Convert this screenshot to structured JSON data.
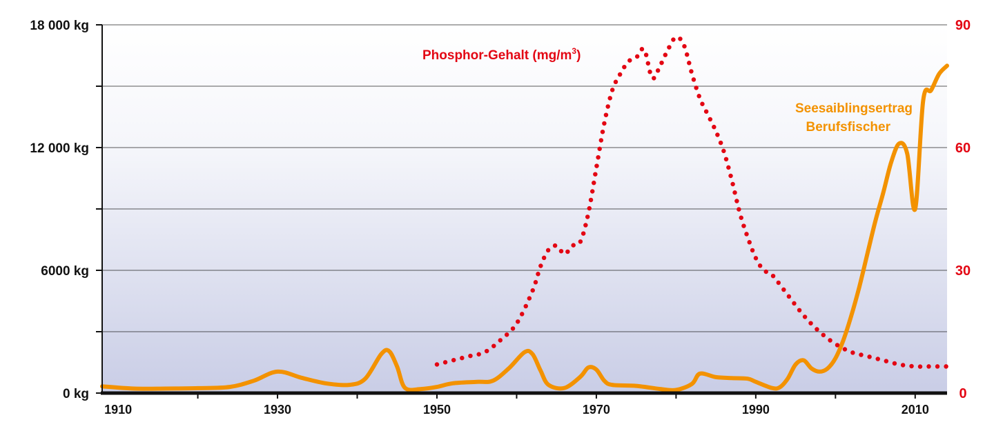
{
  "chart_data": {
    "type": "line",
    "title": "",
    "xlabel": "",
    "ylabel": "",
    "xlim": [
      1908,
      2014
    ],
    "ylim_left": [
      0,
      18000
    ],
    "ylim_right": [
      0,
      90
    ],
    "x_ticks": [
      1910,
      1930,
      1950,
      1970,
      1990,
      2010
    ],
    "x_tick_labels": [
      "1910",
      "1930",
      "1950",
      "1970",
      "1990",
      "2010"
    ],
    "y_left_ticks": [
      0,
      6000,
      12000,
      18000
    ],
    "y_left_tick_labels": [
      "0 kg",
      "6000 kg",
      "12 000 kg",
      "18 000 kg"
    ],
    "y_right_ticks": [
      0,
      30,
      60,
      90
    ],
    "y_right_tick_labels": [
      "0",
      "30",
      "60",
      "90"
    ],
    "grid": true,
    "colors": {
      "phosphor": "#e30613",
      "yield": "#f39200",
      "axis": "#111111",
      "grid": "#222222"
    },
    "annotations": {
      "phosphor_label": "Phosphor-Gehalt (mg/m",
      "phosphor_label_sup": "3",
      "phosphor_label_end": ")",
      "yield_label_line1": "Seesaiblingsertrag",
      "yield_label_line2": "Berufsfischer"
    },
    "series": [
      {
        "name": "Seesaiblingsertrag Berufsfischer",
        "axis": "left",
        "style": "solid",
        "x": [
          1908,
          1912,
          1916,
          1920,
          1924,
          1927,
          1930,
          1933,
          1936,
          1939,
          1941,
          1943,
          1944,
          1945,
          1946,
          1948,
          1950,
          1952,
          1955,
          1957,
          1959,
          1961,
          1962,
          1963,
          1964,
          1966,
          1968,
          1969,
          1970,
          1971,
          1972,
          1975,
          1978,
          1980,
          1982,
          1983,
          1985,
          1987,
          1989,
          1990,
          1992,
          1993,
          1994,
          1995,
          1996,
          1997,
          1998,
          1999,
          2000,
          2001,
          2002,
          2003,
          2004,
          2005,
          2006,
          2007,
          2008,
          2009,
          2010,
          2011,
          2012,
          2013,
          2014
        ],
        "y": [
          330,
          220,
          220,
          240,
          300,
          600,
          1050,
          750,
          480,
          400,
          700,
          1900,
          2050,
          1300,
          250,
          200,
          300,
          480,
          550,
          600,
          1200,
          2000,
          1900,
          1100,
          400,
          250,
          800,
          1250,
          1150,
          600,
          400,
          350,
          200,
          150,
          450,
          950,
          780,
          730,
          700,
          550,
          250,
          280,
          700,
          1400,
          1600,
          1200,
          1050,
          1200,
          1700,
          2600,
          3800,
          5200,
          6800,
          8400,
          9800,
          11300,
          12200,
          11700,
          9000,
          14300,
          14800,
          15600,
          16000
        ]
      },
      {
        "name": "Phosphor-Gehalt (mg/m³)",
        "axis": "right",
        "style": "dotted",
        "x": [
          1950,
          1952,
          1954,
          1956,
          1958,
          1960,
          1962,
          1963,
          1964,
          1965,
          1966,
          1967,
          1968,
          1969,
          1970,
          1971,
          1972,
          1973,
          1974,
          1975,
          1976,
          1977,
          1978,
          1979,
          1980,
          1981,
          1982,
          1983,
          1984,
          1985,
          1986,
          1987,
          1988,
          1989,
          1990,
          1991,
          1992,
          1994,
          1996,
          1998,
          2000,
          2002,
          2004,
          2006,
          2008,
          2010,
          2012,
          2014
        ],
        "y": [
          7,
          8,
          9,
          10,
          13,
          17,
          25,
          31,
          35,
          36,
          34,
          36,
          37,
          44,
          55,
          66,
          74,
          78,
          81,
          82,
          84,
          77,
          80,
          84,
          87,
          85,
          78,
          72,
          68,
          64,
          59,
          52,
          44,
          38,
          33,
          30,
          29,
          24,
          19,
          15,
          12,
          10,
          9,
          8,
          7,
          6.5,
          6.5,
          6.5
        ]
      }
    ]
  }
}
